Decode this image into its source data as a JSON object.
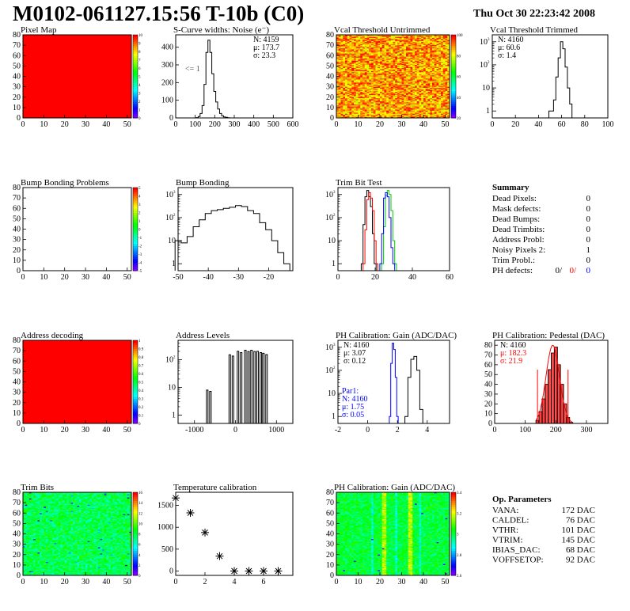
{
  "header": {
    "title": "M0102-061127.15:56 T-10b (C0)",
    "date": "Thu Oct 30 22:23:42 2008"
  },
  "chart_data": [
    {
      "id": "pixel-map",
      "type": "heatmap",
      "title": "Pixel Map",
      "xlim": [
        0,
        52
      ],
      "ylim": [
        0,
        80
      ],
      "xticks": [
        0,
        10,
        20,
        30,
        40,
        50
      ],
      "yticks": [
        0,
        10,
        20,
        30,
        40,
        50,
        60,
        70,
        80
      ],
      "zticks": [
        0,
        1,
        2,
        3,
        4,
        5,
        6,
        7,
        8,
        9,
        10
      ],
      "fill": "uniform",
      "value": 10
    },
    {
      "id": "scurve-noise",
      "type": "line",
      "title": "S-Curve widths: Noise (e⁻)",
      "xlim": [
        0,
        600
      ],
      "ylim": [
        0,
        470
      ],
      "xticks": [
        0,
        100,
        200,
        300,
        400,
        500,
        600
      ],
      "yticks": [
        0,
        100,
        200,
        300,
        400
      ],
      "x": [
        110,
        120,
        130,
        140,
        150,
        160,
        170,
        180,
        190,
        200,
        210,
        220,
        230,
        240,
        250,
        260,
        270,
        280
      ],
      "y": [
        2,
        8,
        25,
        70,
        190,
        370,
        440,
        370,
        250,
        150,
        90,
        50,
        25,
        12,
        6,
        3,
        1,
        0
      ],
      "annotation": "<= 1",
      "stats": [
        "N:  4159",
        "μ:  173.7",
        "σ:  23.3"
      ]
    },
    {
      "id": "vcal-untrimmed",
      "type": "heatmap",
      "title": "Vcal Threshold Untrimmed",
      "xlim": [
        0,
        52
      ],
      "ylim": [
        0,
        80
      ],
      "xticks": [
        0,
        10,
        20,
        30,
        40,
        50
      ],
      "yticks": [
        0,
        10,
        20,
        30,
        40,
        50,
        60,
        70,
        80
      ],
      "zticks": [
        20,
        40,
        60,
        80,
        100
      ],
      "fill": "noise-hot"
    },
    {
      "id": "vcal-trimmed",
      "type": "line",
      "scale": "log",
      "title": "Vcal Threshold Trimmed",
      "xlim": [
        0,
        100
      ],
      "ylim": [
        0.5,
        2000
      ],
      "xticks": [
        0,
        20,
        40,
        60,
        80,
        100
      ],
      "x": [
        50,
        52,
        54,
        56,
        58,
        60,
        62,
        64,
        66,
        68
      ],
      "y": [
        1,
        1,
        3,
        30,
        200,
        1000,
        500,
        80,
        10,
        2
      ],
      "stats": [
        "N:  4160",
        "μ:  60.6",
        "σ:  1.4"
      ]
    },
    {
      "id": "bump-problems",
      "type": "heatmap",
      "title": "Bump Bonding Problems",
      "xlim": [
        0,
        52
      ],
      "ylim": [
        0,
        80
      ],
      "xticks": [
        0,
        10,
        20,
        30,
        40,
        50
      ],
      "yticks": [
        0,
        10,
        20,
        30,
        40,
        50,
        60,
        70,
        80
      ],
      "zticks": [
        -5,
        -4,
        -3,
        -2,
        -1,
        0,
        1,
        2,
        3,
        4,
        5
      ],
      "fill": "empty"
    },
    {
      "id": "bump-bonding",
      "type": "line",
      "scale": "log",
      "title": "Bump Bonding",
      "xlim": [
        -50,
        -12
      ],
      "ylim": [
        0.5,
        2000
      ],
      "xticks": [
        -50,
        -40,
        -30,
        -20
      ],
      "x": [
        -50,
        -48,
        -46,
        -44,
        -42,
        -40,
        -38,
        -36,
        -34,
        -32,
        -30,
        -28,
        -26,
        -24,
        -22,
        -20,
        -18,
        -16,
        -14
      ],
      "y": [
        10,
        8,
        15,
        40,
        80,
        150,
        200,
        220,
        250,
        280,
        330,
        300,
        200,
        150,
        60,
        30,
        10,
        3,
        1
      ]
    },
    {
      "id": "trim-bit-test",
      "type": "line",
      "scale": "log",
      "title": "Trim Bit Test",
      "xlim": [
        0,
        60
      ],
      "ylim": [
        0.5,
        2000
      ],
      "xticks": [
        0,
        20,
        40,
        60
      ],
      "series": [
        {
          "color": "#000000",
          "x": [
            13,
            14,
            15,
            16,
            17,
            18,
            19,
            20
          ],
          "y": [
            1,
            50,
            800,
            1500,
            800,
            300,
            20,
            1
          ]
        },
        {
          "color": "#ff0000",
          "x": [
            14,
            15,
            16,
            17,
            18,
            19,
            20,
            21
          ],
          "y": [
            1,
            30,
            600,
            1200,
            700,
            200,
            10,
            1
          ]
        },
        {
          "color": "#00cc00",
          "x": [
            24,
            25,
            26,
            27,
            28,
            29,
            30,
            31
          ],
          "y": [
            1,
            40,
            900,
            1500,
            1000,
            200,
            10,
            1
          ]
        },
        {
          "color": "#0000ff",
          "x": [
            23,
            24,
            25,
            26,
            27,
            28,
            29,
            30
          ],
          "y": [
            1,
            20,
            700,
            1200,
            800,
            100,
            5,
            1
          ]
        }
      ]
    },
    {
      "id": "address-decoding",
      "type": "heatmap",
      "title": "Address decoding",
      "xlim": [
        0,
        52
      ],
      "ylim": [
        0,
        80
      ],
      "xticks": [
        0,
        10,
        20,
        30,
        40,
        50
      ],
      "yticks": [
        0,
        10,
        20,
        30,
        40,
        50,
        60,
        70,
        80
      ],
      "zticks": [
        0,
        0.1,
        0.2,
        0.3,
        0.4,
        0.5,
        0.6,
        0.7,
        0.8,
        0.9,
        1
      ],
      "fill": "uniform",
      "value": 1
    },
    {
      "id": "address-levels",
      "type": "line",
      "scale": "log",
      "title": "Address Levels",
      "xlim": [
        -1400,
        1400
      ],
      "ylim": [
        0.5,
        500
      ],
      "xticks": [
        -1000,
        0,
        1000
      ],
      "peaks": [
        {
          "x": -650,
          "y": 8
        },
        {
          "x": -100,
          "y": 150
        },
        {
          "x": 100,
          "y": 200
        },
        {
          "x": 280,
          "y": 220
        },
        {
          "x": 430,
          "y": 220
        },
        {
          "x": 580,
          "y": 200
        },
        {
          "x": 720,
          "y": 170
        }
      ]
    },
    {
      "id": "ph-gain",
      "type": "line",
      "scale": "log",
      "title": "PH Calibration: Gain (ADC/DAC)",
      "xlim": [
        -2,
        5.5
      ],
      "ylim": [
        0.5,
        2000
      ],
      "xticks": [
        -2,
        0,
        2,
        4
      ],
      "series": [
        {
          "color": "#000000",
          "x": [
            2.6,
            2.8,
            3.0,
            3.2,
            3.4,
            3.6
          ],
          "y": [
            1,
            50,
            300,
            400,
            100,
            2
          ]
        },
        {
          "color": "#0000ff",
          "x": [
            1.5,
            1.6,
            1.7,
            1.8,
            1.9,
            2.0
          ],
          "y": [
            1,
            200,
            1500,
            800,
            50,
            1
          ]
        }
      ],
      "stats": [
        "N:  4160",
        "μ:  3.07",
        "σ:  0.12"
      ],
      "stats2": [
        "Par1:",
        "N:  4160",
        "μ:  1.75",
        "σ:  0.05"
      ]
    },
    {
      "id": "ph-pedestal",
      "type": "bar",
      "title": "PH Calibration: Pedestal (DAC)",
      "xlim": [
        0,
        370
      ],
      "ylim": [
        0,
        85
      ],
      "xticks": [
        0,
        100,
        200,
        300
      ],
      "yticks": [
        0,
        10,
        20,
        30,
        40,
        50,
        60,
        70,
        80
      ],
      "x": [
        140,
        150,
        160,
        170,
        180,
        190,
        200,
        210,
        220,
        230,
        240,
        250
      ],
      "y": [
        3,
        12,
        25,
        40,
        55,
        72,
        78,
        60,
        40,
        20,
        6,
        1
      ],
      "stats": [
        "N:  4160",
        "μ:  182.3",
        "σ:  21.9"
      ]
    },
    {
      "id": "trim-bits",
      "type": "heatmap",
      "title": "Trim Bits",
      "xlim": [
        0,
        52
      ],
      "ylim": [
        0,
        80
      ],
      "xticks": [
        0,
        10,
        20,
        30,
        40,
        50
      ],
      "yticks": [
        0,
        10,
        20,
        30,
        40,
        50,
        60,
        70,
        80
      ],
      "zticks": [
        0,
        2,
        4,
        6,
        8,
        10,
        12,
        14,
        16
      ],
      "fill": "noise-green"
    },
    {
      "id": "temperature-calibration",
      "type": "scatter",
      "title": "Temperature calibration",
      "xlim": [
        0,
        8
      ],
      "ylim": [
        -100,
        1800
      ],
      "xticks": [
        0,
        2,
        4,
        6
      ],
      "yticks": [
        0,
        500,
        1000,
        1500
      ],
      "x": [
        0,
        1,
        2,
        3,
        4,
        5,
        6,
        7
      ],
      "y": [
        1670,
        1330,
        880,
        340,
        0,
        0,
        0,
        0
      ]
    },
    {
      "id": "ph-gain-map",
      "type": "heatmap",
      "title": "PH Calibration: Gain (ADC/DAC)",
      "xlim": [
        0,
        52
      ],
      "ylim": [
        0,
        80
      ],
      "xticks": [
        0,
        10,
        20,
        30,
        40,
        50
      ],
      "yticks": [
        0,
        10,
        20,
        30,
        40,
        50,
        60,
        70,
        80
      ],
      "zticks": [
        2.6,
        2.8,
        3,
        3.2,
        3.4
      ],
      "fill": "noise-gain"
    }
  ],
  "summary": {
    "title": "Summary",
    "rows": [
      {
        "label": "Dead Pixels:",
        "value": "0"
      },
      {
        "label": "Mask defects:",
        "value": "0"
      },
      {
        "label": "Dead Bumps:",
        "value": "0"
      },
      {
        "label": "Dead Trimbits:",
        "value": "0"
      },
      {
        "label": "Address Probl:",
        "value": "0"
      },
      {
        "label": "Noisy Pixels 2:",
        "value": "1"
      },
      {
        "label": "Trim Probl.:",
        "value": "0"
      }
    ],
    "ph_defects": {
      "label": "PH defects:",
      "v1": "0/",
      "v2": "0/",
      "v3": "0"
    }
  },
  "parameters": {
    "title": "Op. Parameters",
    "rows": [
      {
        "label": "VANA:",
        "value": "172 DAC"
      },
      {
        "label": "CALDEL:",
        "value": "76 DAC"
      },
      {
        "label": "VTHR:",
        "value": "101 DAC"
      },
      {
        "label": "VTRIM:",
        "value": "145 DAC"
      },
      {
        "label": "IBIAS_DAC:",
        "value": "68 DAC"
      },
      {
        "label": "VOFFSETOP:",
        "value": "92 DAC"
      }
    ]
  }
}
